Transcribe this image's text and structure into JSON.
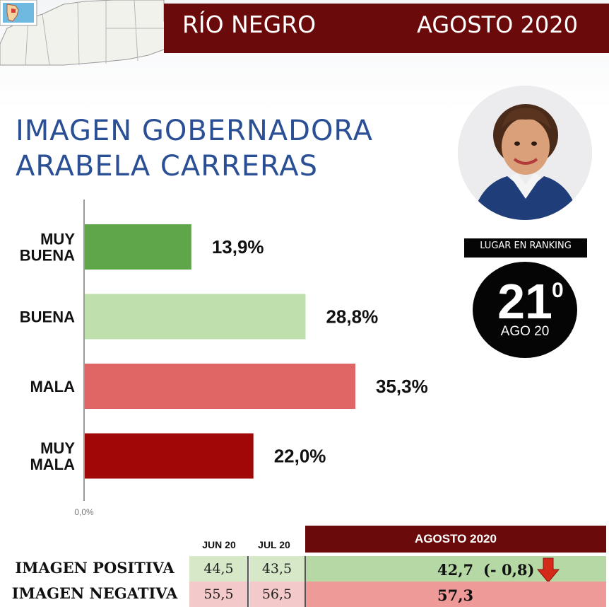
{
  "header": {
    "region": "RÍO NEGRO",
    "date": "AGOSTO 2020"
  },
  "title": {
    "line1": "IMAGEN GOBERNADORA",
    "line2": "ARABELA CARRERAS"
  },
  "ranking": {
    "label": "LUGAR EN RANKING",
    "position": "21",
    "superscript": "0",
    "period": "AGO 20"
  },
  "chart_data": {
    "type": "bar",
    "orientation": "horizontal",
    "categories": [
      "MUY\nBUENA",
      "BUENA",
      "MALA",
      "MUY\nMALA"
    ],
    "values": [
      13.9,
      28.8,
      35.3,
      22.0
    ],
    "value_labels": [
      "13,9%",
      "28,8%",
      "35,3%",
      "22,0%"
    ],
    "colors": [
      "#5fa64a",
      "#bfe0ad",
      "#e06565",
      "#a00808"
    ],
    "axis_min_label": "0,0%",
    "xlim": [
      0,
      40
    ]
  },
  "table": {
    "col_jun": "JUN 20",
    "col_jul": "JUL 20",
    "col_aug": "AGOSTO 2020",
    "rows": [
      {
        "label": "IMAGEN POSITIVA",
        "jun": "44,5",
        "jul": "43,5",
        "aug": "42,7",
        "change": "(- 0,8)"
      },
      {
        "label": "IMAGEN NEGATIVA",
        "jun": "55,5",
        "jul": "56,5",
        "aug": "57,3"
      }
    ],
    "trend_icon": "down-arrow-icon"
  },
  "colors": {
    "header_bg": "#6b0a0a",
    "title": "#2a4f94"
  }
}
